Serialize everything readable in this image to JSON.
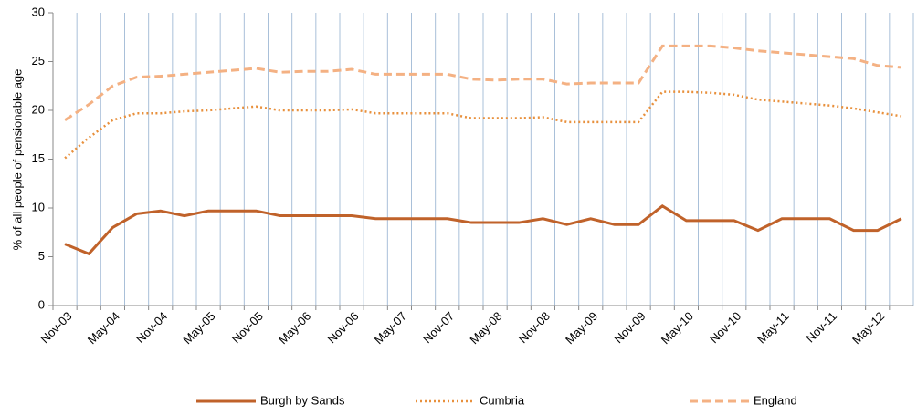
{
  "chart_data": {
    "type": "line",
    "ylabel": "% of all people of pensionable age",
    "categories": [
      "Nov-03",
      null,
      "May-04",
      null,
      "Nov-04",
      null,
      "May-05",
      null,
      "Nov-05",
      null,
      "May-06",
      null,
      "Nov-06",
      null,
      "May-07",
      null,
      "Nov-07",
      null,
      "May-08",
      null,
      "Nov-08",
      null,
      "May-09",
      null,
      "Nov-09",
      null,
      "May-10",
      null,
      "Nov-10",
      null,
      "May-11",
      null,
      "Nov-11",
      null,
      "May-12",
      null
    ],
    "series": [
      {
        "name": "Burgh by Sands",
        "color": "#c0622a",
        "style": "solid",
        "values": [
          6.3,
          5.3,
          8.0,
          9.4,
          9.7,
          9.2,
          9.7,
          9.7,
          9.7,
          9.2,
          9.2,
          9.2,
          9.2,
          8.9,
          8.9,
          8.9,
          8.9,
          8.5,
          8.5,
          8.5,
          8.9,
          8.3,
          8.9,
          8.3,
          8.3,
          10.2,
          8.7,
          8.7,
          8.7,
          7.7,
          8.9,
          8.9,
          8.9,
          7.7,
          7.7,
          8.9
        ]
      },
      {
        "name": "Cumbria",
        "color": "#e8903c",
        "style": "dotted",
        "values": [
          15.1,
          17.2,
          19.0,
          19.7,
          19.7,
          19.9,
          20.0,
          20.2,
          20.4,
          20.0,
          20.0,
          20.0,
          20.1,
          19.7,
          19.7,
          19.7,
          19.7,
          19.2,
          19.2,
          19.2,
          19.3,
          18.8,
          18.8,
          18.8,
          18.8,
          21.9,
          21.9,
          21.8,
          21.6,
          21.1,
          20.9,
          20.7,
          20.5,
          20.2,
          19.8,
          19.4
        ]
      },
      {
        "name": "England",
        "color": "#f4b183",
        "style": "dashed",
        "values": [
          19.0,
          20.6,
          22.5,
          23.4,
          23.5,
          23.7,
          23.9,
          24.1,
          24.3,
          23.9,
          24.0,
          24.0,
          24.2,
          23.7,
          23.7,
          23.7,
          23.7,
          23.2,
          23.1,
          23.2,
          23.2,
          22.7,
          22.8,
          22.8,
          22.8,
          26.6,
          26.6,
          26.6,
          26.4,
          26.1,
          25.9,
          25.7,
          25.5,
          25.3,
          24.6,
          24.4
        ]
      }
    ],
    "ylim": [
      0,
      30
    ],
    "yticks": [
      0,
      5,
      10,
      15,
      20,
      25,
      30
    ],
    "xgrid": true,
    "legend": "bottom"
  }
}
